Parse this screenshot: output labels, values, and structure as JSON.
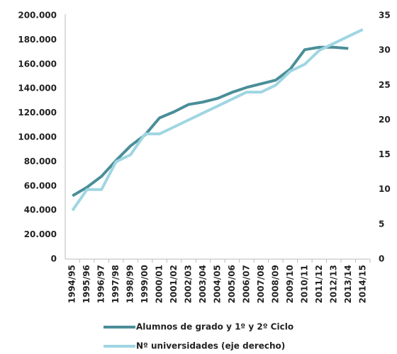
{
  "chart_data": {
    "type": "line",
    "categories": [
      "1994/95",
      "1995/96",
      "1996/97",
      "1997/98",
      "1998/99",
      "1999/00",
      "2000/01",
      "2001/02",
      "2002/03",
      "2003/04",
      "2004/05",
      "2005/06",
      "2006/07",
      "2007/08",
      "2008/09",
      "2009/10",
      "2010/11",
      "2011/12",
      "2012/13",
      "2013/14",
      "2014/15"
    ],
    "series": [
      {
        "name": "Alumnos de grado y 1º y 2º Ciclo",
        "color": "#4a8e98",
        "axis": "y",
        "values": [
          52000,
          59000,
          68000,
          81000,
          93000,
          102000,
          116000,
          121000,
          127000,
          129000,
          132000,
          137000,
          141000,
          144000,
          147000,
          156000,
          172000,
          174000,
          174000,
          173000,
          null
        ]
      },
      {
        "name": "Nº universidades (eje derecho)",
        "color": "#9fd6e2",
        "axis": "y2",
        "values": [
          7,
          10,
          10,
          14,
          15,
          18,
          18,
          19,
          20,
          21,
          22,
          23,
          24,
          24,
          25,
          27,
          28,
          30,
          31,
          32,
          33
        ]
      }
    ],
    "ylim": [
      0,
      200000
    ],
    "yticks": [
      0,
      {
        "value": 20000,
        "label": "20.000"
      },
      {
        "value": 40000,
        "label": "40.000"
      },
      {
        "value": 60000,
        "label": "60.000"
      },
      {
        "value": 80000,
        "label": "80.000"
      },
      {
        "value": 100000,
        "label": "100.000"
      },
      {
        "value": 120000,
        "label": "120.000"
      },
      {
        "value": 140000,
        "label": "140.000"
      },
      {
        "value": 160000,
        "label": "160.000"
      },
      {
        "value": 180000,
        "label": "180.000"
      },
      {
        "value": 200000,
        "label": "200.000"
      }
    ],
    "y2lim": [
      0,
      35
    ],
    "y2ticks": [
      0,
      5,
      10,
      15,
      20,
      25,
      30,
      35
    ],
    "grid": false,
    "legend": "bottom"
  }
}
